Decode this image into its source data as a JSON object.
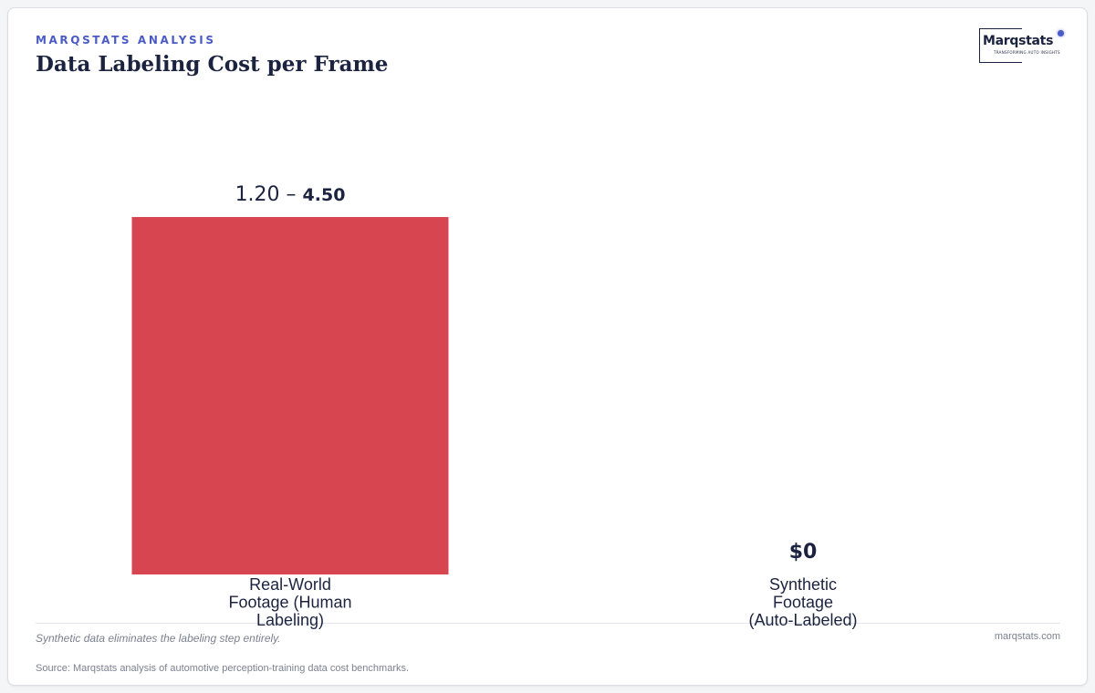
{
  "header": {
    "eyebrow": "MARQSTATS ANALYSIS",
    "title": "Data Labeling Cost per Frame"
  },
  "logo": {
    "name": "Marqstats",
    "tagline": "TRANSFORMING AUTO INSIGHTS",
    "accent_color": "#4a5bc4"
  },
  "chart_data": {
    "type": "bar",
    "categories": [
      "Real-World Footage (Human Labeling)",
      "Synthetic Footage (Auto-Labeled)"
    ],
    "values": [
      4.5,
      0
    ],
    "value_labels": [
      {
        "low": "1.20",
        "separator": " – ",
        "high": "4.50"
      },
      {
        "text": "$0"
      }
    ],
    "range_low": [
      1.2,
      0
    ],
    "bar_colors": [
      "#d74650",
      "#d74650"
    ],
    "title": "Data Labeling Cost per Frame",
    "ylim": [
      0,
      4.5
    ],
    "grid": false,
    "legend": "none"
  },
  "footer": {
    "note": "Synthetic data eliminates the labeling step entirely.",
    "site": "marqstats.com",
    "source": "Source: Marqstats analysis of automotive perception-training data cost benchmarks."
  }
}
